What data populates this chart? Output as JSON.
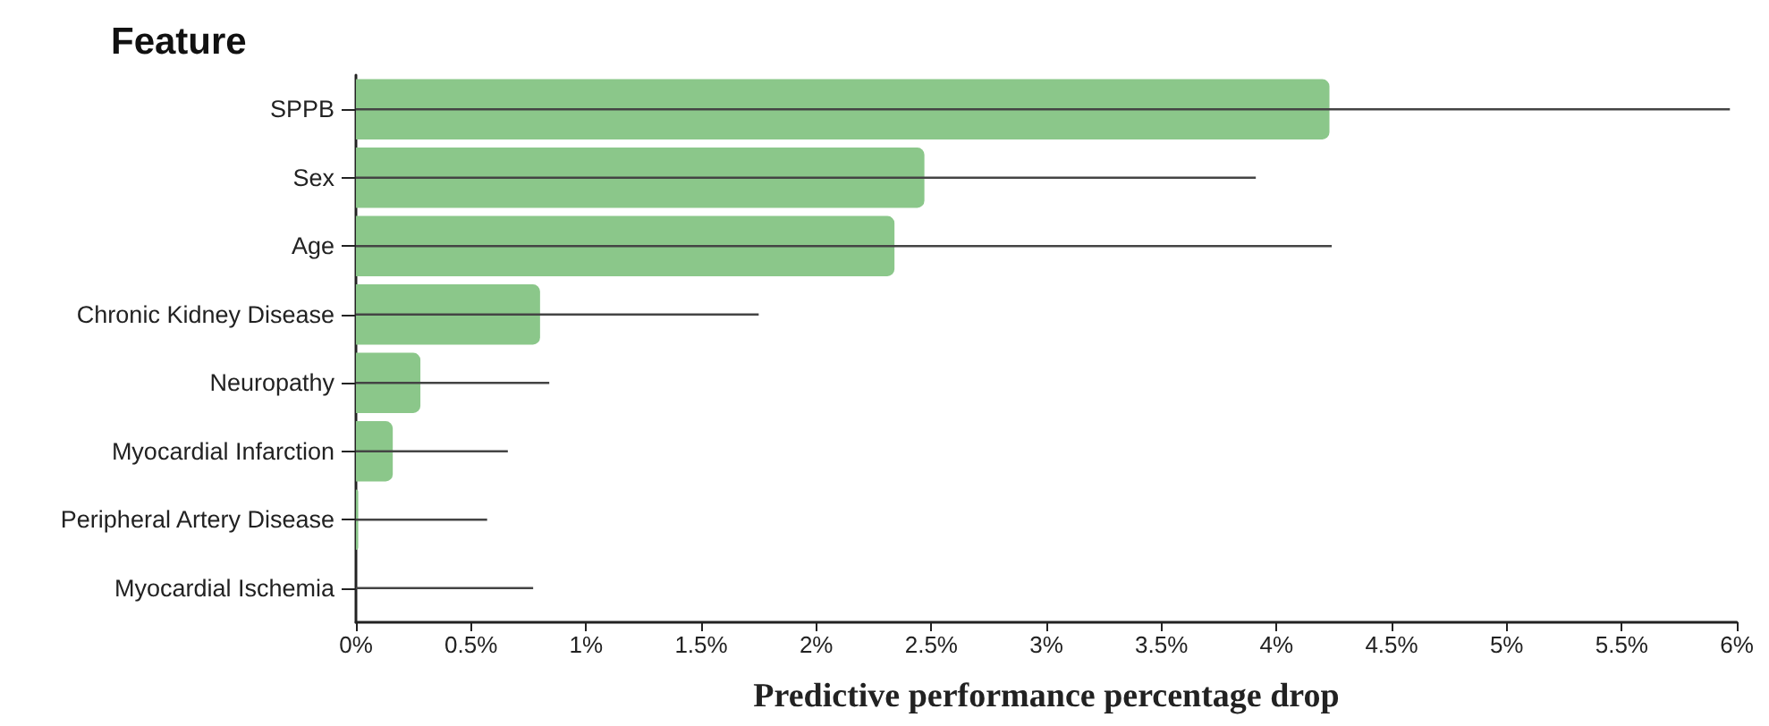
{
  "chart_data": {
    "type": "bar",
    "orientation": "horizontal",
    "ylabel": "Feature",
    "xlabel": "Predictive performance percentage drop",
    "categories": [
      "SPPB",
      "Sex",
      "Age",
      "Chronic Kidney Disease",
      "Neuropathy",
      "Myocardial Infarction",
      "Peripheral Artery Disease",
      "Myocardial Ischemia"
    ],
    "values": [
      4.23,
      2.47,
      2.34,
      0.8,
      0.28,
      0.16,
      0.01,
      0
    ],
    "errors": [
      [
        0,
        5.97
      ],
      [
        0,
        3.91
      ],
      [
        0,
        4.24
      ],
      [
        0,
        1.75
      ],
      [
        0,
        0.84
      ],
      [
        0,
        0.66
      ],
      [
        0,
        0.57
      ],
      [
        0,
        0.77
      ]
    ],
    "color": "#8bc78a",
    "xlim": [
      0,
      6
    ],
    "xticks": [
      {
        "value": 0,
        "label": "0%"
      },
      {
        "value": 0.5,
        "label": "0.5%"
      },
      {
        "value": 1,
        "label": "1%"
      },
      {
        "value": 1.5,
        "label": "1.5%"
      },
      {
        "value": 2,
        "label": "2%"
      },
      {
        "value": 2.5,
        "label": "2.5%"
      },
      {
        "value": 3,
        "label": "3%"
      },
      {
        "value": 3.5,
        "label": "3.5%"
      },
      {
        "value": 4,
        "label": "4%"
      },
      {
        "value": 4.5,
        "label": "4.5%"
      },
      {
        "value": 5,
        "label": "5%"
      },
      {
        "value": 5.5,
        "label": "5.5%"
      },
      {
        "value": 6,
        "label": "6%"
      }
    ],
    "grid": false
  }
}
